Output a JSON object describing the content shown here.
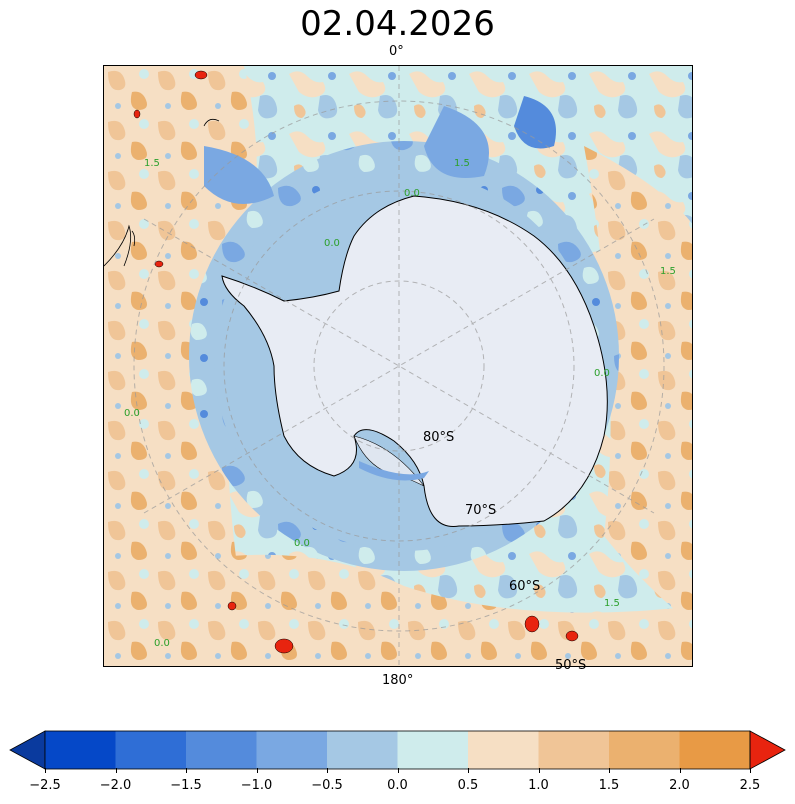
{
  "title": "02.04.2026",
  "map": {
    "projection": "south-polar-stereographic",
    "longitude_labels": {
      "top": "0°",
      "bottom": "180°"
    },
    "latitude_labels": [
      "80°S",
      "70°S",
      "60°S",
      "50°S"
    ],
    "contour_labels": [
      "0.0",
      "1.5"
    ],
    "land_color": "#e8ecf4",
    "contour_label_color": "#2ca02c"
  },
  "colorbar": {
    "ticks": [
      "−2.5",
      "−2.0",
      "−1.5",
      "−1.0",
      "−0.5",
      "0.0",
      "0.5",
      "1.0",
      "1.5",
      "2.0",
      "2.5"
    ],
    "colors": [
      "#0548c8",
      "#2f6ed6",
      "#548bdc",
      "#7aa8e2",
      "#a5c8e4",
      "#cfecec",
      "#f6dfc4",
      "#f0c597",
      "#ebb16f",
      "#e89a45"
    ],
    "under_color": "#0a3a9e",
    "over_color": "#e8240f",
    "range": [
      -2.5,
      2.5
    ],
    "extend": "both"
  }
}
